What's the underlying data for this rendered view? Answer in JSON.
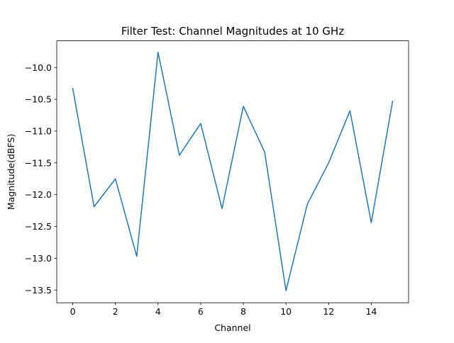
{
  "chart_data": {
    "type": "line",
    "title": "Filter Test: Channel Magnitudes at 10 GHz",
    "xlabel": "Channel",
    "ylabel": "Magnitude(dBFS)",
    "x": [
      0,
      1,
      2,
      3,
      4,
      5,
      6,
      7,
      8,
      9,
      10,
      11,
      12,
      13,
      14,
      15
    ],
    "series": [
      {
        "values": [
          -10.33,
          -12.19,
          -11.75,
          -12.97,
          -9.76,
          -11.38,
          -10.88,
          -12.22,
          -10.61,
          -11.33,
          -13.51,
          -12.15,
          -11.5,
          -10.68,
          -12.44,
          -10.53
        ],
        "color": "#1f77b4"
      }
    ],
    "xlim": [
      -0.75,
      15.75
    ],
    "ylim": [
      -13.7,
      -9.58
    ],
    "xticks": [
      0,
      2,
      4,
      6,
      8,
      10,
      12,
      14
    ],
    "xtick_labels": [
      "0",
      "2",
      "4",
      "6",
      "8",
      "10",
      "12",
      "14"
    ],
    "yticks": [
      -13.5,
      -13.0,
      -12.5,
      -12.0,
      -11.5,
      -11.0,
      -10.5,
      -10.0
    ],
    "ytick_labels": [
      "−13.5",
      "−13.0",
      "−12.5",
      "−12.0",
      "−11.5",
      "−11.0",
      "−10.5",
      "−10.0"
    ],
    "grid": false,
    "legend": false
  }
}
